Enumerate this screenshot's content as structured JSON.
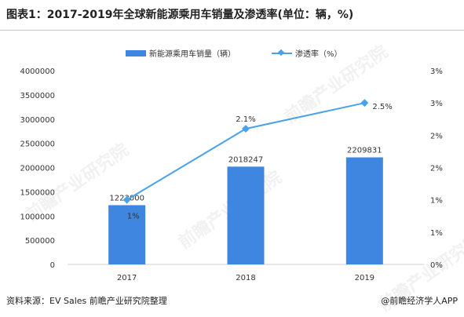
{
  "title": "图表1：2017-2019年全球新能源乘用车销量及渗透率(单位：辆，%)",
  "legend": {
    "bar_label": "新能源乘用车销量（辆）",
    "line_label": "渗透率（%）"
  },
  "source_text": "资料来源：EV Sales 前瞻产业研究院整理",
  "brand_text": "@前瞻经济学人APP",
  "watermark_text": "前瞻产业研究院",
  "colors": {
    "bar": "#3f86e0",
    "line": "#4aa3e8",
    "axis": "#cccccc",
    "text": "#333333"
  },
  "chart_data": {
    "type": "bar+line",
    "categories": [
      "2017",
      "2018",
      "2019"
    ],
    "series": [
      {
        "name": "新能源乘用车销量（辆）",
        "type": "bar",
        "axis": "left",
        "values": [
          1223000,
          2018247,
          2209831
        ],
        "data_labels": [
          "1223000",
          "2018247",
          "2209831"
        ]
      },
      {
        "name": "渗透率（%）",
        "type": "line",
        "axis": "right",
        "values": [
          1.0,
          2.1,
          2.5
        ],
        "data_labels": [
          "1%",
          "2.1%",
          "2.5%"
        ]
      }
    ],
    "y_left": {
      "min": 0,
      "max": 4000000,
      "ticks": [
        "0",
        "500000",
        "1000000",
        "1500000",
        "2000000",
        "2500000",
        "3000000",
        "3500000",
        "4000000"
      ]
    },
    "y_right": {
      "min": 0,
      "max": 3,
      "tick_values": [
        0,
        0.5,
        1,
        1.5,
        2,
        2.5,
        3
      ],
      "tick_labels": [
        "0%",
        "1%",
        "1%",
        "2%",
        "2%",
        "3%",
        "3%"
      ]
    },
    "legend_position": "top-center",
    "grid": false
  }
}
